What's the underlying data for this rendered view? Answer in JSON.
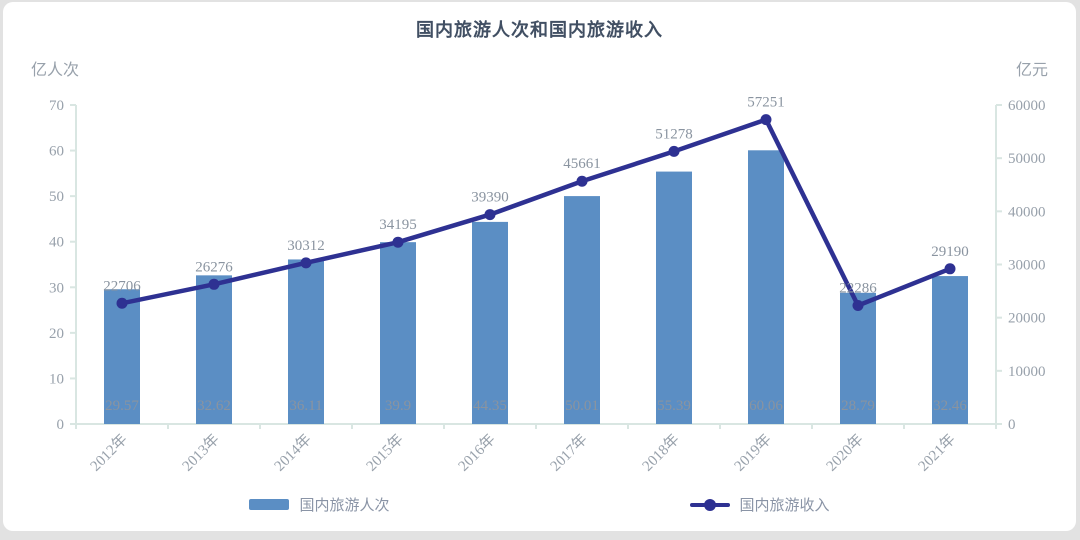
{
  "chart_title": "国内旅游人次和国内旅游收入",
  "chart_data": {
    "type": "bar+line",
    "title": "国内旅游人次和国内旅游收入",
    "categories": [
      "2012年",
      "2013年",
      "2014年",
      "2015年",
      "2016年",
      "2017年",
      "2018年",
      "2019年",
      "2020年",
      "2021年"
    ],
    "series": [
      {
        "name": "国内旅游人次",
        "type": "bar",
        "axis": "left",
        "values": [
          29.57,
          32.62,
          36.11,
          39.9,
          44.35,
          50.01,
          55.39,
          60.06,
          28.79,
          32.46
        ],
        "labels": [
          "29.57",
          "32.62",
          "36.11",
          "39.9",
          "44.35",
          "50.01",
          "55.39",
          "60.06",
          "28.79",
          "32.46"
        ],
        "color": "#5b8ec4"
      },
      {
        "name": "国内旅游收入",
        "type": "line",
        "axis": "right",
        "values": [
          22706,
          26276,
          30312,
          34195,
          39390,
          45661,
          51278,
          57251,
          22286,
          29190
        ],
        "labels": [
          "22706",
          "26276",
          "30312",
          "34195",
          "39390",
          "45661",
          "51278",
          "57251",
          "22286",
          "29190"
        ],
        "color": "#2e3192"
      }
    ],
    "left_axis": {
      "unit": "亿人次",
      "min": 0,
      "max": 70,
      "step": 10,
      "tick_labels": [
        "0",
        "10",
        "20",
        "30",
        "40",
        "50",
        "60",
        "70"
      ]
    },
    "right_axis": {
      "unit": "亿元",
      "min": 0,
      "max": 60000,
      "step": 10000,
      "tick_labels": [
        "0",
        "10000",
        "20000",
        "30000",
        "40000",
        "50000",
        "60000"
      ]
    },
    "grid": false,
    "legend_position": "bottom"
  },
  "legend": {
    "bar_label": "国内旅游人次",
    "line_label": "国内旅游收入"
  },
  "colors": {
    "bar": "#5b8ec4",
    "line": "#2e3192",
    "axis_line": "#d9e6e2",
    "tick_text": "#98a1ab",
    "data_label": "#8a94a0",
    "title_text": "#414f63",
    "legend_text": "#8a94a6",
    "card_bg": "#ffffff",
    "page_bg": "#e2e2e2"
  }
}
